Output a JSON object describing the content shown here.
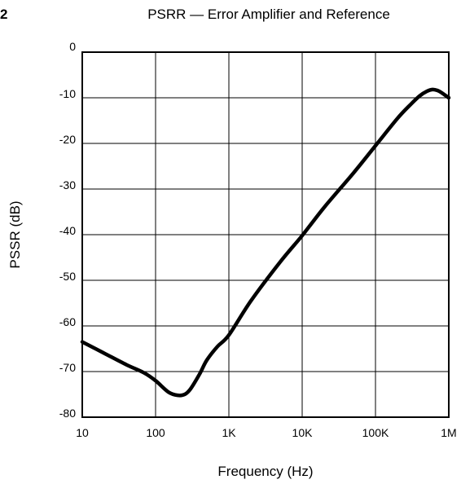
{
  "figure_number": "2",
  "chart_data": {
    "type": "line",
    "title": "PSRR — Error Amplifier and Reference",
    "xlabel": "Frequency (Hz)",
    "ylabel": "PSSR (dB)",
    "x_scale": "log",
    "xlim": [
      10,
      1000000
    ],
    "ylim": [
      -80,
      0
    ],
    "grid": true,
    "x_ticks": [
      10,
      100,
      1000,
      10000,
      100000,
      1000000
    ],
    "x_tick_labels": [
      "10",
      "100",
      "1K",
      "10K",
      "100K",
      "1M"
    ],
    "y_ticks": [
      0,
      -10,
      -20,
      -30,
      -40,
      -50,
      -60,
      -70,
      -80
    ],
    "y_tick_labels": [
      "0",
      "-10",
      "-20",
      "-30",
      "-40",
      "-50",
      "-60",
      "-70",
      "-80"
    ],
    "series": [
      {
        "x": [
          10,
          20,
          40,
          70,
          100,
          150,
          200,
          250,
          300,
          400,
          500,
          700,
          1000,
          2000,
          5000,
          10000,
          20000,
          50000,
          100000,
          200000,
          300000,
          400000,
          500000,
          600000,
          700000,
          800000,
          1000000
        ],
        "y": [
          -63.5,
          -66,
          -68.5,
          -70.3,
          -72,
          -74.5,
          -75.2,
          -75,
          -73.8,
          -70.5,
          -67.5,
          -64.5,
          -62,
          -54.5,
          -46,
          -40.2,
          -34,
          -26.5,
          -20.5,
          -14.5,
          -11.5,
          -9.6,
          -8.6,
          -8.2,
          -8.4,
          -8.9,
          -10
        ]
      }
    ],
    "line_color": "#000000"
  }
}
